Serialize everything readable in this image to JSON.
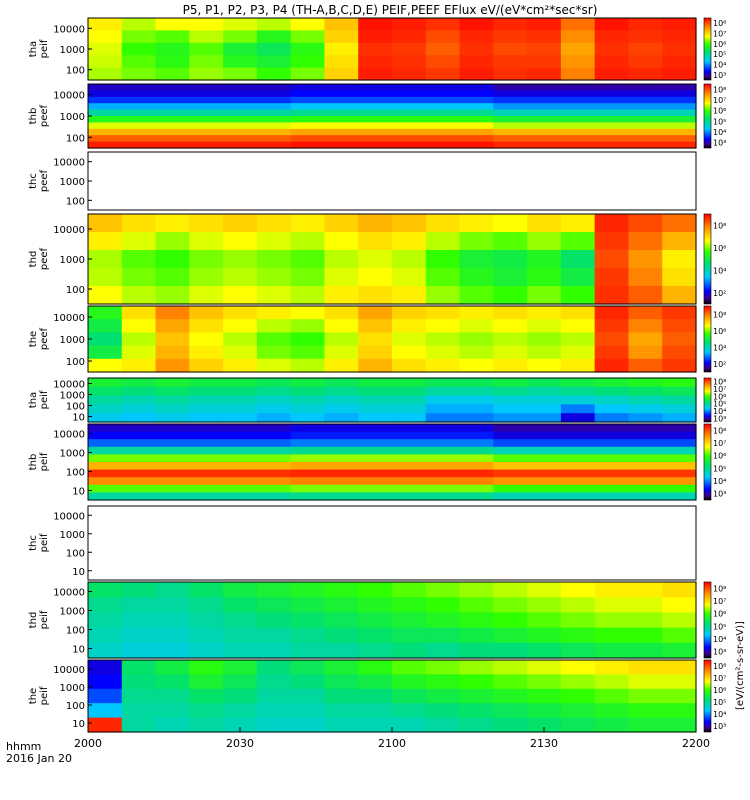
{
  "chart_data": {
    "type": "heatmap",
    "title": "P5, P1, P2, P3, P4 (TH-A,B,C,D,E) PEIF,PEEF EFlux eV/(eV*cm²*sec*sr)",
    "x_label_top": "hhmm",
    "x_label_bottom": "2016 Jan 20",
    "x_ticks": [
      "2000",
      "2030",
      "2100",
      "2130",
      "2200"
    ],
    "x_range": [
      "2000",
      "2200"
    ],
    "y_scale": "log",
    "colormap": "rainbow",
    "colorbar_label": "[eV/(cm²-s-sr-eV)]",
    "panels": [
      {
        "id": "tha_peif",
        "label_line1": "tha",
        "label_line2": "peif",
        "y_ticks": [
          "10000",
          "1000",
          "100"
        ],
        "cb_ticks": [
          "10⁸",
          "10⁷",
          "10⁶",
          "10⁵",
          "10⁴",
          "10³"
        ],
        "data": [
          [
            0.72,
            0.7,
            0.68,
            0.67,
            0.65
          ],
          [
            0.66,
            0.62,
            0.58,
            0.6,
            0.62
          ],
          [
            0.7,
            0.6,
            0.55,
            0.56,
            0.6
          ],
          [
            0.7,
            0.66,
            0.6,
            0.62,
            0.64
          ],
          [
            0.68,
            0.62,
            0.52,
            0.55,
            0.62
          ],
          [
            0.66,
            0.55,
            0.48,
            0.52,
            0.58
          ],
          [
            0.7,
            0.62,
            0.56,
            0.58,
            0.62
          ],
          [
            0.78,
            0.76,
            0.72,
            0.74,
            0.76
          ],
          [
            0.98,
            0.97,
            0.95,
            0.96,
            0.97
          ],
          [
            0.97,
            0.96,
            0.94,
            0.95,
            0.96
          ],
          [
            0.95,
            0.92,
            0.9,
            0.92,
            0.94
          ],
          [
            0.98,
            0.96,
            0.95,
            0.96,
            0.97
          ],
          [
            0.96,
            0.94,
            0.92,
            0.94,
            0.95
          ],
          [
            0.97,
            0.95,
            0.93,
            0.94,
            0.96
          ],
          [
            0.88,
            0.85,
            0.82,
            0.84,
            0.86
          ],
          [
            0.98,
            0.96,
            0.95,
            0.96,
            0.97
          ],
          [
            0.96,
            0.95,
            0.93,
            0.94,
            0.96
          ],
          [
            0.97,
            0.96,
            0.95,
            0.96,
            0.97
          ]
        ]
      },
      {
        "id": "thb_peef",
        "label_line1": "thb",
        "label_line2": "peef",
        "y_ticks": [
          "10000",
          "1000",
          "100"
        ],
        "cb_ticks": [
          "10⁸",
          "10⁷",
          "10⁶",
          "10⁵",
          "10⁴",
          "10³"
        ],
        "data": [
          [
            0.1,
            0.12,
            0.18,
            0.28,
            0.4,
            0.55,
            0.68,
            0.8,
            0.9,
            0.97
          ],
          [
            0.12,
            0.14,
            0.2,
            0.3,
            0.42,
            0.56,
            0.7,
            0.82,
            0.92,
            0.98
          ],
          [
            0.08,
            0.12,
            0.18,
            0.26,
            0.38,
            0.52,
            0.66,
            0.8,
            0.9,
            0.96
          ]
        ]
      },
      {
        "id": "thc_peef",
        "label_line1": "thc",
        "label_line2": "peef",
        "y_ticks": [
          "10000",
          "1000",
          "100"
        ],
        "cb_ticks": [],
        "data": []
      },
      {
        "id": "thd_peef",
        "label_line1": "thd",
        "label_line2": "peef",
        "y_ticks": [
          "10000",
          "1000",
          "100"
        ],
        "cb_ticks": [
          "10⁸",
          "10⁶",
          "10⁴",
          "10²"
        ],
        "data": [
          [
            0.78,
            0.72,
            0.65,
            0.66,
            0.7
          ],
          [
            0.74,
            0.68,
            0.6,
            0.62,
            0.66
          ],
          [
            0.72,
            0.64,
            0.58,
            0.6,
            0.64
          ],
          [
            0.74,
            0.68,
            0.62,
            0.64,
            0.68
          ],
          [
            0.76,
            0.7,
            0.64,
            0.66,
            0.7
          ],
          [
            0.74,
            0.68,
            0.62,
            0.64,
            0.68
          ],
          [
            0.72,
            0.66,
            0.6,
            0.62,
            0.66
          ],
          [
            0.76,
            0.7,
            0.66,
            0.68,
            0.72
          ],
          [
            0.8,
            0.74,
            0.68,
            0.7,
            0.74
          ],
          [
            0.78,
            0.72,
            0.66,
            0.68,
            0.72
          ],
          [
            0.74,
            0.66,
            0.58,
            0.6,
            0.64
          ],
          [
            0.72,
            0.62,
            0.52,
            0.55,
            0.6
          ],
          [
            0.7,
            0.6,
            0.5,
            0.52,
            0.58
          ],
          [
            0.74,
            0.64,
            0.54,
            0.56,
            0.62
          ],
          [
            0.72,
            0.6,
            0.46,
            0.5,
            0.58
          ],
          [
            0.96,
            0.94,
            0.92,
            0.94,
            0.95
          ],
          [
            0.92,
            0.88,
            0.84,
            0.86,
            0.9
          ],
          [
            0.88,
            0.8,
            0.72,
            0.74,
            0.8
          ]
        ]
      },
      {
        "id": "the_peef",
        "label_line1": "the",
        "label_line2": "peef",
        "y_ticks": [
          "10000",
          "1000",
          "100"
        ],
        "cb_ticks": [
          "10⁸",
          "10⁶",
          "10⁴",
          "10²"
        ],
        "data": [
          [
            0.55,
            0.5,
            0.45,
            0.5,
            0.7
          ],
          [
            0.74,
            0.7,
            0.66,
            0.68,
            0.72
          ],
          [
            0.86,
            0.82,
            0.78,
            0.8,
            0.84
          ],
          [
            0.78,
            0.74,
            0.7,
            0.72,
            0.76
          ],
          [
            0.74,
            0.7,
            0.66,
            0.68,
            0.72
          ],
          [
            0.72,
            0.66,
            0.6,
            0.62,
            0.68
          ],
          [
            0.7,
            0.64,
            0.58,
            0.6,
            0.66
          ],
          [
            0.74,
            0.7,
            0.66,
            0.68,
            0.72
          ],
          [
            0.82,
            0.78,
            0.74,
            0.76,
            0.8
          ],
          [
            0.76,
            0.72,
            0.68,
            0.7,
            0.74
          ],
          [
            0.74,
            0.7,
            0.66,
            0.68,
            0.72
          ],
          [
            0.72,
            0.68,
            0.64,
            0.66,
            0.7
          ],
          [
            0.74,
            0.7,
            0.66,
            0.68,
            0.72
          ],
          [
            0.72,
            0.68,
            0.64,
            0.66,
            0.7
          ],
          [
            0.74,
            0.7,
            0.66,
            0.68,
            0.72
          ],
          [
            0.96,
            0.94,
            0.92,
            0.94,
            0.96
          ],
          [
            0.9,
            0.86,
            0.82,
            0.84,
            0.9
          ],
          [
            0.94,
            0.92,
            0.9,
            0.92,
            0.94
          ]
        ]
      },
      {
        "id": "tha_peif_2",
        "label_line1": "tha",
        "label_line2": "peif",
        "y_ticks": [
          "10000",
          "1000",
          "100",
          "10"
        ],
        "cb_ticks": [
          "10⁸",
          "10⁷",
          "10⁶",
          "10⁵",
          "10⁴",
          "10³"
        ],
        "data": [
          [
            0.52,
            0.46,
            0.4,
            0.36,
            0.32
          ],
          [
            0.5,
            0.44,
            0.38,
            0.34,
            0.3
          ],
          [
            0.52,
            0.46,
            0.4,
            0.36,
            0.32
          ],
          [
            0.5,
            0.44,
            0.38,
            0.34,
            0.3
          ],
          [
            0.5,
            0.44,
            0.38,
            0.34,
            0.3
          ],
          [
            0.48,
            0.42,
            0.36,
            0.32,
            0.28
          ],
          [
            0.5,
            0.44,
            0.38,
            0.34,
            0.3
          ],
          [
            0.48,
            0.42,
            0.36,
            0.32,
            0.28
          ],
          [
            0.5,
            0.44,
            0.38,
            0.34,
            0.3
          ],
          [
            0.5,
            0.44,
            0.38,
            0.34,
            0.3
          ],
          [
            0.48,
            0.4,
            0.32,
            0.28,
            0.24
          ],
          [
            0.48,
            0.4,
            0.32,
            0.28,
            0.24
          ],
          [
            0.5,
            0.42,
            0.34,
            0.3,
            0.26
          ],
          [
            0.48,
            0.4,
            0.34,
            0.3,
            0.26
          ],
          [
            0.5,
            0.42,
            0.34,
            0.24,
            0.12
          ],
          [
            0.52,
            0.44,
            0.36,
            0.3,
            0.24
          ],
          [
            0.54,
            0.46,
            0.38,
            0.32,
            0.26
          ],
          [
            0.56,
            0.48,
            0.4,
            0.34,
            0.28
          ]
        ]
      },
      {
        "id": "thb_peif",
        "label_line1": "thb",
        "label_line2": "peif",
        "y_ticks": [
          "10000",
          "1000",
          "100",
          "10"
        ],
        "cb_ticks": [
          "10⁸",
          "10⁷",
          "10⁶",
          "10⁵",
          "10⁴",
          "10³"
        ],
        "data": [
          [
            0.1,
            0.14,
            0.22,
            0.4,
            0.62,
            0.8,
            0.95,
            0.85,
            0.6,
            0.4
          ],
          [
            0.12,
            0.16,
            0.24,
            0.42,
            0.64,
            0.82,
            0.96,
            0.86,
            0.62,
            0.42
          ],
          [
            0.08,
            0.12,
            0.2,
            0.38,
            0.6,
            0.78,
            0.94,
            0.84,
            0.58,
            0.38
          ]
        ]
      },
      {
        "id": "thc_peif",
        "label_line1": "thc",
        "label_line2": "peif",
        "y_ticks": [
          "10000",
          "1000",
          "100",
          "10"
        ],
        "cb_ticks": [],
        "data": []
      },
      {
        "id": "thd_peif",
        "label_line1": "thd",
        "label_line2": "peif",
        "y_ticks": [
          "10000",
          "1000",
          "100",
          "10"
        ],
        "cb_ticks": [
          "10⁸",
          "10⁷",
          "10⁶",
          "10⁵",
          "10⁴",
          "10³"
        ],
        "data": [
          [
            0.46,
            0.42,
            0.4,
            0.38,
            0.36
          ],
          [
            0.44,
            0.4,
            0.38,
            0.36,
            0.34
          ],
          [
            0.42,
            0.4,
            0.38,
            0.36,
            0.34
          ],
          [
            0.46,
            0.42,
            0.4,
            0.38,
            0.36
          ],
          [
            0.5,
            0.46,
            0.42,
            0.4,
            0.38
          ],
          [
            0.52,
            0.48,
            0.44,
            0.4,
            0.38
          ],
          [
            0.54,
            0.5,
            0.46,
            0.42,
            0.4
          ],
          [
            0.56,
            0.52,
            0.48,
            0.44,
            0.4
          ],
          [
            0.58,
            0.54,
            0.5,
            0.46,
            0.42
          ],
          [
            0.6,
            0.56,
            0.52,
            0.48,
            0.44
          ],
          [
            0.62,
            0.58,
            0.54,
            0.48,
            0.42
          ],
          [
            0.64,
            0.6,
            0.56,
            0.5,
            0.44
          ],
          [
            0.66,
            0.62,
            0.58,
            0.52,
            0.44
          ],
          [
            0.68,
            0.64,
            0.6,
            0.54,
            0.46
          ],
          [
            0.7,
            0.66,
            0.62,
            0.56,
            0.48
          ],
          [
            0.72,
            0.68,
            0.64,
            0.58,
            0.5
          ],
          [
            0.72,
            0.68,
            0.64,
            0.58,
            0.5
          ],
          [
            0.74,
            0.7,
            0.66,
            0.6,
            0.52
          ]
        ]
      },
      {
        "id": "the_peif",
        "label_line1": "the",
        "label_line2": "peif",
        "y_ticks": [
          "10000",
          "1000",
          "100",
          "10"
        ],
        "cb_ticks": [
          "10⁸",
          "10⁷",
          "10⁶",
          "10⁵",
          "10⁴",
          "10³"
        ],
        "data": [
          [
            0.12,
            0.14,
            0.2,
            0.3,
            0.96
          ],
          [
            0.46,
            0.44,
            0.42,
            0.4,
            0.4
          ],
          [
            0.5,
            0.46,
            0.42,
            0.4,
            0.38
          ],
          [
            0.56,
            0.52,
            0.46,
            0.42,
            0.4
          ],
          [
            0.52,
            0.48,
            0.44,
            0.4,
            0.38
          ],
          [
            0.44,
            0.42,
            0.4,
            0.38,
            0.36
          ],
          [
            0.48,
            0.44,
            0.4,
            0.38,
            0.36
          ],
          [
            0.52,
            0.48,
            0.44,
            0.4,
            0.38
          ],
          [
            0.56,
            0.5,
            0.44,
            0.4,
            0.38
          ],
          [
            0.6,
            0.54,
            0.48,
            0.42,
            0.38
          ],
          [
            0.62,
            0.56,
            0.5,
            0.44,
            0.4
          ],
          [
            0.64,
            0.58,
            0.52,
            0.46,
            0.42
          ],
          [
            0.66,
            0.6,
            0.54,
            0.48,
            0.44
          ],
          [
            0.68,
            0.62,
            0.56,
            0.5,
            0.46
          ],
          [
            0.7,
            0.64,
            0.58,
            0.52,
            0.48
          ],
          [
            0.72,
            0.66,
            0.6,
            0.54,
            0.5
          ],
          [
            0.74,
            0.68,
            0.62,
            0.56,
            0.52
          ],
          [
            0.74,
            0.68,
            0.62,
            0.56,
            0.52
          ]
        ]
      }
    ]
  }
}
